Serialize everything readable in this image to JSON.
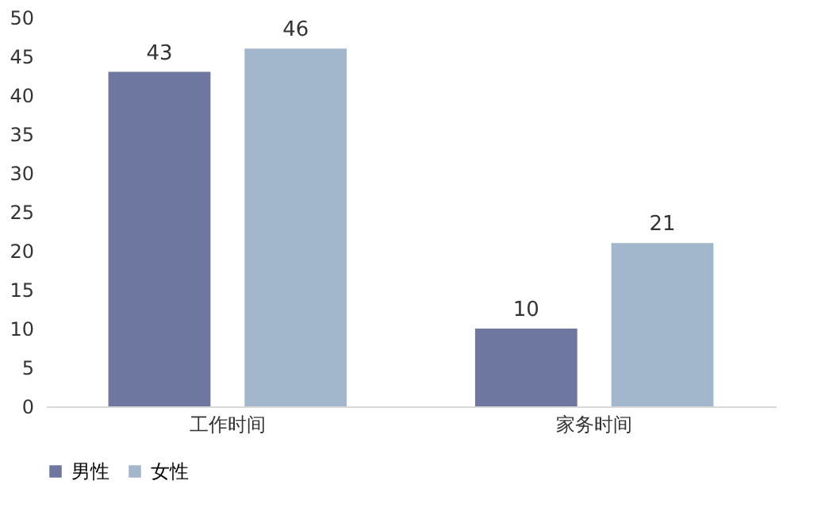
{
  "chart_data": {
    "type": "bar",
    "categories": [
      "工作时间",
      "家务时间"
    ],
    "series": [
      {
        "name": "男性",
        "color": "#6d77a0",
        "values": [
          43,
          10
        ]
      },
      {
        "name": "女性",
        "color": "#a2b6cc",
        "values": [
          46,
          21
        ]
      }
    ],
    "ylim": [
      0,
      50
    ],
    "yticks": [
      0,
      5,
      10,
      15,
      20,
      25,
      30,
      35,
      40,
      45,
      50
    ],
    "grid": false,
    "legend": "bottom",
    "data_labels": true
  }
}
